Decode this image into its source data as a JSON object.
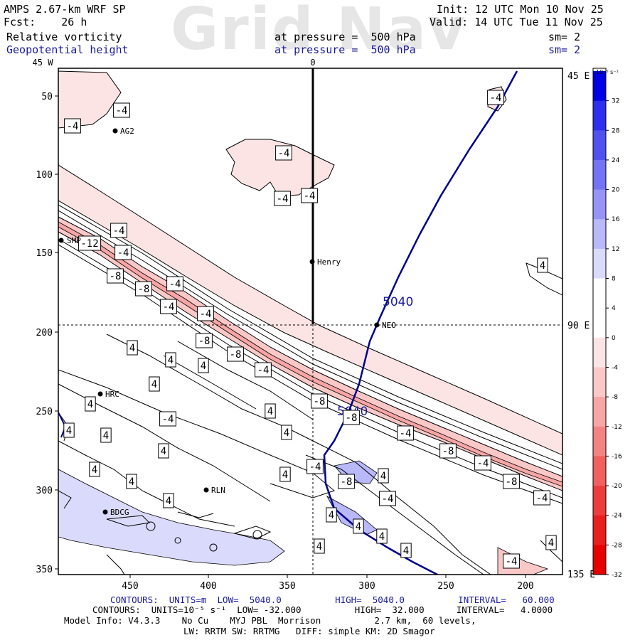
{
  "watermark": "Grid Nav",
  "header": {
    "line1_left": "AMPS 2.67-km WRF SP",
    "line2_left": "Fcst:    26 h",
    "line1_right": "Init: 12 UTC Mon 10 Nov 25",
    "line2_right": "Valid: 14 UTC Tue 11 Nov 25",
    "field1_name": "Relative vorticity",
    "field1_level": "at pressure =  500 hPa",
    "field1_sm": "sm= 2",
    "field2_name": "Geopotential height",
    "field2_level": "at pressure =  500 hPa",
    "field2_sm": "sm= 2"
  },
  "axes": {
    "top_labels": [
      "45 W",
      "0"
    ],
    "right_labels": [
      "45 E",
      "90 E",
      "135 E"
    ],
    "y_ticks": [
      "50",
      "100",
      "150",
      "200",
      "250",
      "300",
      "350"
    ],
    "x_ticks": [
      "450",
      "400",
      "350",
      "300",
      "250",
      "200"
    ]
  },
  "colorbar": {
    "unit": "10⁻⁵ s⁻¹",
    "labels": [
      "32",
      "28",
      "24",
      "20",
      "16",
      "12",
      "8",
      "4",
      "0",
      "-4",
      "-8",
      "-12",
      "-16",
      "-20",
      "-24",
      "-28",
      "-32"
    ],
    "colors": [
      "#0000e6",
      "#2e2eee",
      "#5151f2",
      "#7373f5",
      "#9595f8",
      "#b8b8fb",
      "#dadafd",
      "#ffffff",
      "#ffffff",
      "#fde4e4",
      "#fbc8c8",
      "#f8a5a5",
      "#f58282",
      "#f25f5f",
      "#ee3c3c",
      "#eb1e1e",
      "#e60000"
    ]
  },
  "stations": [
    {
      "name": "AG2"
    },
    {
      "name": "SMP"
    },
    {
      "name": "Henry"
    },
    {
      "name": "NEO"
    },
    {
      "name": "HRC"
    },
    {
      "name": "RLN"
    },
    {
      "name": "BDCG"
    }
  ],
  "height_contour_label": "5040",
  "footer": {
    "line1": "CONTOURS:  UNITS=m  LOW=  5040.0          HIGH=  5040.0          INTERVAL=   60.000",
    "line2": "CONTOURS:  UNITS=10⁻⁵ s⁻¹  LOW= -32.000          HIGH=  32.000      INTERVAL=   4.0000",
    "line3": "Model Info: V4.3.3    No Cu    MYJ PBL  Morrison          2.7 km,  60 levels,",
    "line4": "LW: RRTM SW: RRTMG   DIFF: simple KM: 2D Smagor"
  }
}
